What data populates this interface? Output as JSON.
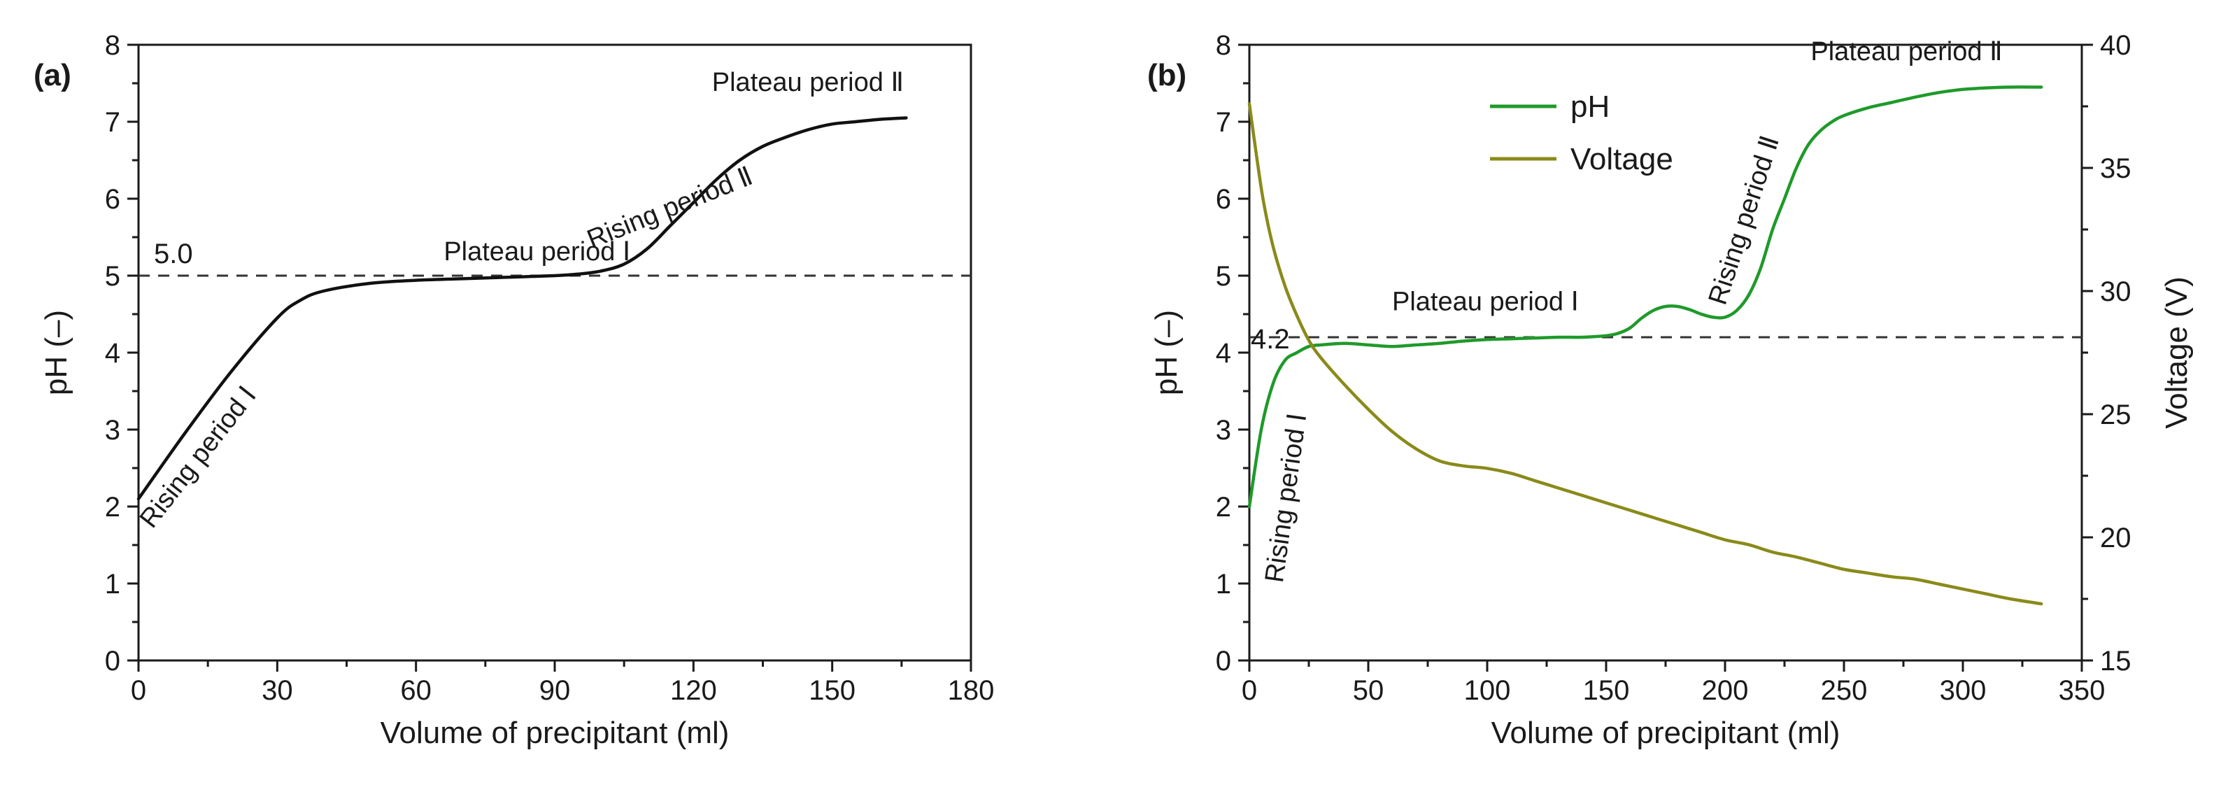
{
  "chart_data": [
    {
      "panel_label": "(a)",
      "type": "line",
      "xlabel": "Volume of precipitant (ml)",
      "ylabel": "pH (–)",
      "xlim": [
        0,
        180
      ],
      "ylim": [
        0,
        8
      ],
      "xticks": [
        "0",
        "30",
        "60",
        "90",
        "120",
        "150",
        "180"
      ],
      "yticks": [
        "0",
        "1",
        "2",
        "3",
        "4",
        "5",
        "6",
        "7",
        "8"
      ],
      "series": [
        {
          "name": "pH",
          "color": "#111111",
          "x": [
            0,
            10,
            20,
            30,
            35,
            40,
            50,
            60,
            70,
            80,
            90,
            95,
            100,
            105,
            110,
            115,
            120,
            125,
            130,
            135,
            140,
            145,
            150,
            155,
            160,
            166
          ],
          "y": [
            2.1,
            2.95,
            3.75,
            4.45,
            4.68,
            4.8,
            4.9,
            4.94,
            4.96,
            4.98,
            5.0,
            5.02,
            5.06,
            5.15,
            5.35,
            5.65,
            5.95,
            6.25,
            6.5,
            6.68,
            6.8,
            6.9,
            6.97,
            7.0,
            7.03,
            7.05
          ]
        }
      ],
      "reference_line": {
        "y": 5.0,
        "label": "5.0",
        "style": "dashed"
      },
      "annotations": [
        {
          "text": "Plateau period Ⅰ",
          "x": 66,
          "y": 5.2,
          "rotation": 0
        },
        {
          "text": "Plateau period Ⅱ",
          "x": 124,
          "y": 7.4,
          "rotation": 0
        },
        {
          "text": "Rising period Ⅰ",
          "x": 3,
          "y": 1.7,
          "rotation": -52
        },
        {
          "text": "Rising period Ⅱ",
          "x": 98,
          "y": 5.35,
          "rotation": -22
        }
      ]
    },
    {
      "panel_label": "(b)",
      "type": "line",
      "xlabel": "Volume of precipitant (ml)",
      "ylabel": "pH (–)",
      "y2label": "Voltage (V)",
      "xlim": [
        0,
        350
      ],
      "ylim": [
        0,
        8
      ],
      "y2lim": [
        15,
        40
      ],
      "xticks": [
        "0",
        "50",
        "100",
        "150",
        "200",
        "250",
        "300",
        "350"
      ],
      "yticks": [
        "0",
        "1",
        "2",
        "3",
        "4",
        "5",
        "6",
        "7",
        "8"
      ],
      "y2ticks": [
        "15",
        "20",
        "25",
        "30",
        "35",
        "40"
      ],
      "legend": {
        "position": "top-left",
        "entries": [
          "pH",
          "Voltage"
        ]
      },
      "series": [
        {
          "name": "pH",
          "axis": "left",
          "color": "#1f9a2a",
          "x": [
            0,
            5,
            10,
            15,
            20,
            25,
            30,
            40,
            50,
            60,
            70,
            80,
            90,
            100,
            110,
            120,
            130,
            140,
            150,
            155,
            160,
            165,
            170,
            175,
            180,
            185,
            190,
            195,
            200,
            205,
            210,
            215,
            220,
            225,
            230,
            235,
            240,
            245,
            250,
            260,
            270,
            280,
            290,
            300,
            310,
            320,
            333
          ],
          "y": [
            2.0,
            3.0,
            3.6,
            3.9,
            4.0,
            4.08,
            4.1,
            4.12,
            4.1,
            4.08,
            4.1,
            4.12,
            4.15,
            4.17,
            4.18,
            4.19,
            4.2,
            4.2,
            4.22,
            4.25,
            4.32,
            4.45,
            4.55,
            4.6,
            4.6,
            4.56,
            4.5,
            4.46,
            4.46,
            4.55,
            4.75,
            5.1,
            5.6,
            6.0,
            6.4,
            6.7,
            6.88,
            7.0,
            7.08,
            7.18,
            7.25,
            7.32,
            7.38,
            7.42,
            7.44,
            7.45,
            7.45
          ]
        },
        {
          "name": "Voltage",
          "axis": "right",
          "color": "#8a8a1a",
          "x": [
            0,
            3,
            6,
            10,
            15,
            20,
            25,
            30,
            40,
            50,
            60,
            70,
            80,
            90,
            100,
            110,
            120,
            130,
            140,
            150,
            160,
            170,
            180,
            190,
            200,
            210,
            220,
            230,
            240,
            250,
            260,
            270,
            280,
            290,
            300,
            310,
            320,
            333
          ],
          "y": [
            37.6,
            35.5,
            33.6,
            31.8,
            30.2,
            29.0,
            28.0,
            27.3,
            26.2,
            25.2,
            24.3,
            23.6,
            23.1,
            22.9,
            22.8,
            22.6,
            22.3,
            22.0,
            21.7,
            21.4,
            21.1,
            20.8,
            20.5,
            20.2,
            19.9,
            19.7,
            19.4,
            19.2,
            18.95,
            18.7,
            18.55,
            18.4,
            18.3,
            18.1,
            17.9,
            17.7,
            17.5,
            17.3
          ]
        }
      ],
      "reference_line": {
        "y": 4.2,
        "label": "4.2",
        "style": "dashed"
      },
      "annotations": [
        {
          "text": "Plateau period Ⅰ",
          "x": 60,
          "y": 4.55,
          "rotation": 0
        },
        {
          "text": "Plateau period Ⅱ",
          "x": 236,
          "y": 7.8,
          "rotation": 0
        },
        {
          "text": "Rising period Ⅰ",
          "x": 14,
          "y": 1.0,
          "rotation": -82
        },
        {
          "text": "Rising period Ⅱ",
          "x": 200,
          "y": 4.6,
          "rotation": -72
        }
      ]
    }
  ]
}
